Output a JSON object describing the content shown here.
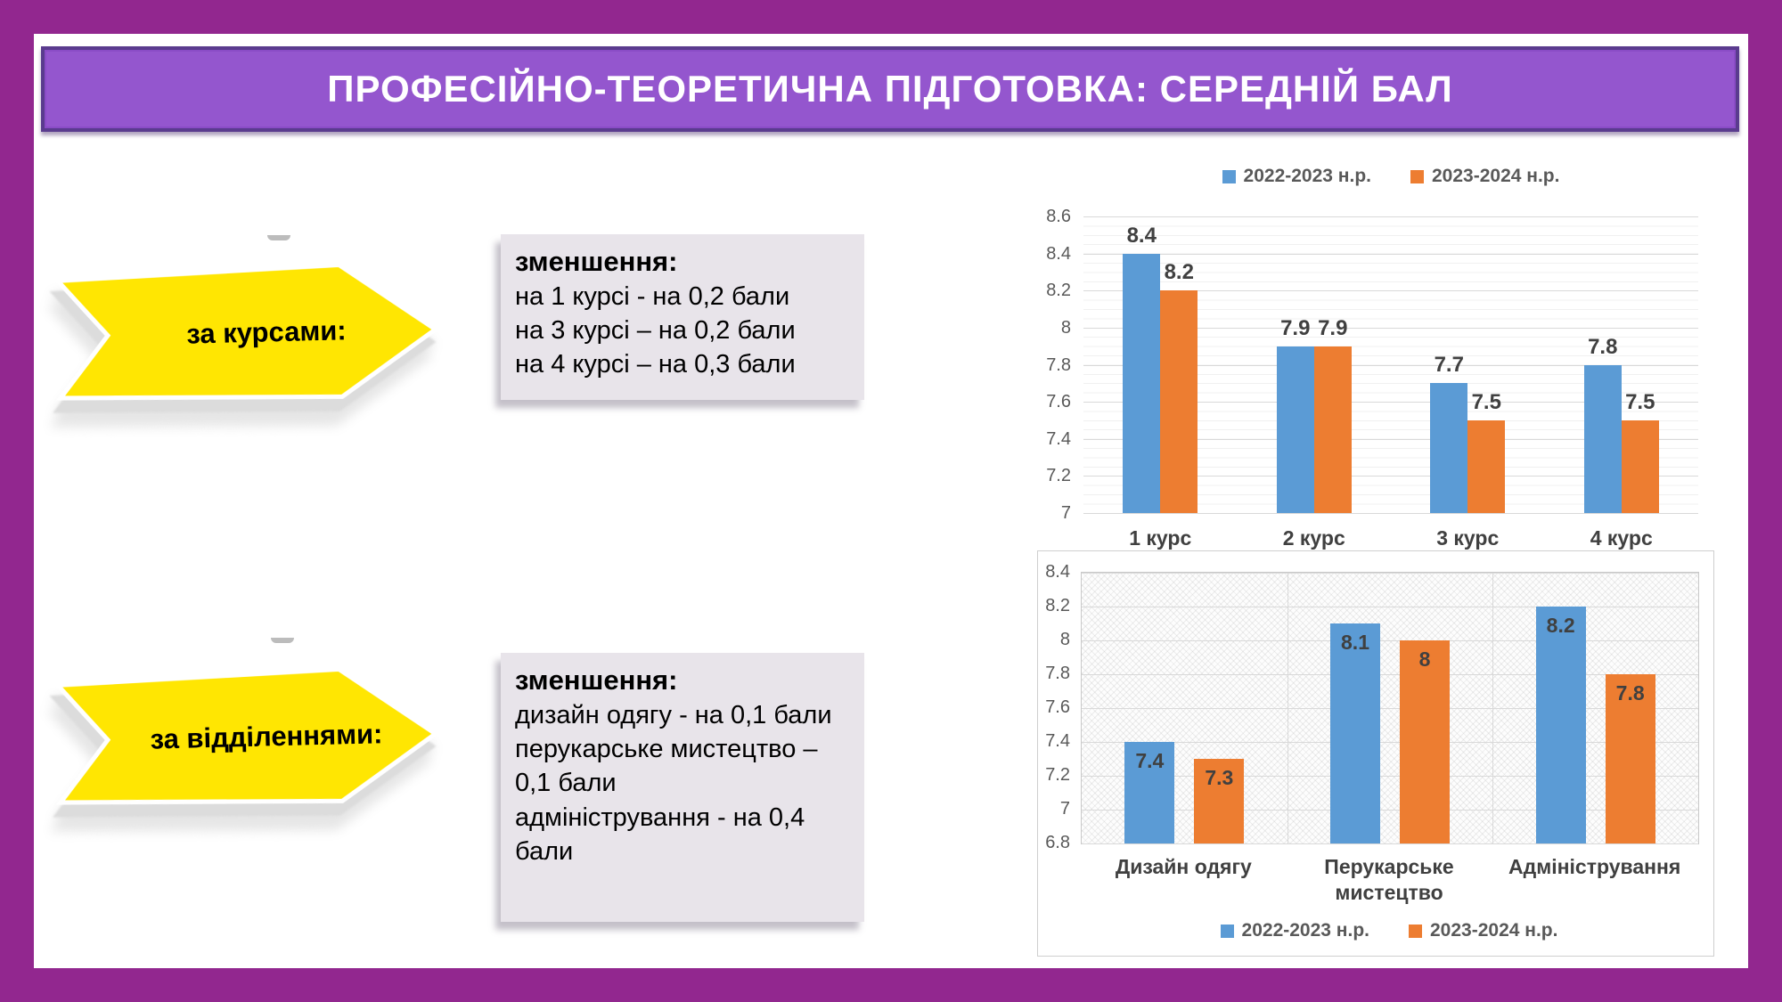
{
  "title": {
    "text": "ПРОФЕСІЙНО-ТЕОРЕТИЧНА ПІДГОТОВКА: СЕРЕДНІЙ БАЛ"
  },
  "colors": {
    "frame": "#92278F",
    "banner_fill": "#9456CE",
    "banner_border": "#5A3B8E",
    "arrow_yellow": "#FFE602",
    "note_box_fill": "#E8E4EA",
    "series_blue": "#5B9BD5",
    "series_orange": "#ED7D31"
  },
  "left_panel": {
    "arrows": [
      {
        "label": "за курсами:"
      },
      {
        "label": "за відділеннями:"
      }
    ],
    "boxes": [
      {
        "title": "зменшення:",
        "lines": [
          "на 1 курсі - на 0,2 бали",
          "на 3 курсі – на 0,2 бали",
          "на 4 курсі – на 0,3 бали"
        ]
      },
      {
        "title": "зменшення:",
        "lines": [
          "дизайн одягу -  на 0,1 бали",
          "перукарське мистецтво – 0,1 бали",
          "адміністрування - на 0,4 бали"
        ]
      }
    ]
  },
  "chart_data": [
    {
      "type": "bar",
      "title": "",
      "categories": [
        "1 курс",
        "2 курс",
        "3 курс",
        "4 курс"
      ],
      "series": [
        {
          "name": "2022-2023 н.р.",
          "color": "#5B9BD5",
          "values": [
            8.4,
            7.9,
            7.7,
            7.8
          ]
        },
        {
          "name": "2023-2024 н.р.",
          "color": "#ED7D31",
          "values": [
            8.2,
            7.9,
            7.5,
            7.5
          ]
        }
      ],
      "ylim": [
        7,
        8.6
      ],
      "yticks": [
        "8.6",
        "8.4",
        "8.2",
        "8",
        "7.8",
        "7.6",
        "7.4",
        "7.2",
        "7"
      ],
      "legend_position": "top",
      "data_label_position": "outside-end",
      "grid": "horizontal major + minor"
    },
    {
      "type": "bar",
      "title": "",
      "categories": [
        "Дизайн одягу",
        "Перукарське мистецтво",
        "Адміністрування"
      ],
      "series": [
        {
          "name": "2022-2023 н.р.",
          "color": "#5B9BD5",
          "values": [
            7.4,
            8.1,
            8.2
          ]
        },
        {
          "name": "2023-2024 н.р.",
          "color": "#ED7D31",
          "values": [
            7.3,
            8,
            7.8
          ]
        }
      ],
      "ylim": [
        6.8,
        8.4
      ],
      "yticks": [
        "8.4",
        "8.2",
        "8",
        "7.8",
        "7.6",
        "7.4",
        "7.2",
        "7",
        "6.8"
      ],
      "legend_position": "bottom",
      "data_label_position": "inside-end",
      "grid": "horizontal + vertical, patterned plot area"
    }
  ]
}
